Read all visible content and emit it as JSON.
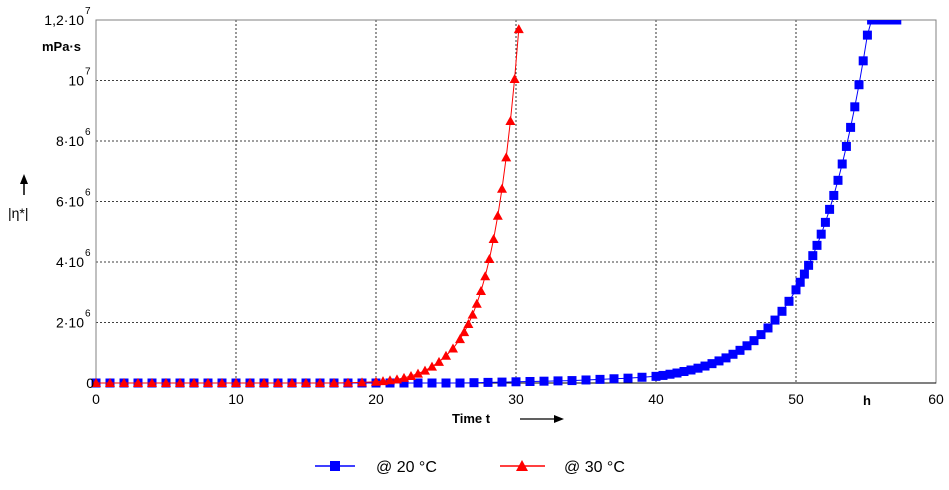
{
  "chart_data": {
    "type": "scatter",
    "xlabel": "Time t",
    "x_unit": "h",
    "ylabel": "|η*|",
    "y_unit": "mPa·s",
    "xlim": [
      0,
      60
    ],
    "ylim": [
      0,
      12000000
    ],
    "grid": true,
    "legend_position": "bottom-center",
    "x_ticks": [
      {
        "value": 0,
        "label": "0"
      },
      {
        "value": 10,
        "label": "10"
      },
      {
        "value": 20,
        "label": "20"
      },
      {
        "value": 30,
        "label": "30"
      },
      {
        "value": 40,
        "label": "40"
      },
      {
        "value": 50,
        "label": "50"
      },
      {
        "value": 60,
        "label": "60"
      }
    ],
    "y_ticks": [
      {
        "value": 0,
        "mantissa": "0",
        "exponent": ""
      },
      {
        "value": 2000000,
        "mantissa": "2·10",
        "exponent": "6"
      },
      {
        "value": 4000000,
        "mantissa": "4·10",
        "exponent": "6"
      },
      {
        "value": 6000000,
        "mantissa": "6·10",
        "exponent": "6"
      },
      {
        "value": 8000000,
        "mantissa": "8·10",
        "exponent": "6"
      },
      {
        "value": 10000000,
        "mantissa": "10",
        "exponent": "7"
      },
      {
        "value": 12000000,
        "mantissa": "1,2·10",
        "exponent": "7"
      }
    ],
    "series": [
      {
        "name": "@ 20 °C",
        "color": "#0000ff",
        "marker": "square",
        "x": [
          0,
          1,
          2,
          3,
          4,
          5,
          6,
          7,
          8,
          9,
          10,
          11,
          12,
          13,
          14,
          15,
          16,
          17,
          18,
          19,
          20,
          21,
          22,
          23,
          24,
          25,
          26,
          27,
          28,
          29,
          30,
          31,
          32,
          33,
          34,
          35,
          36,
          37,
          38,
          39,
          40,
          40.5,
          41,
          41.5,
          42,
          42.5,
          43,
          43.5,
          44,
          44.5,
          45,
          45.5,
          46,
          46.5,
          47,
          47.5,
          48,
          48.5,
          49,
          49.5,
          50,
          50.3,
          50.6,
          50.9,
          51.2,
          51.5,
          51.8,
          52.1,
          52.4,
          52.7,
          53,
          53.3,
          53.6,
          53.9,
          54.2,
          54.5,
          54.8,
          55.1,
          55.4,
          55.7,
          56,
          56.3,
          56.6,
          56.9,
          57.2
        ],
        "y": [
          0,
          0,
          0,
          0,
          0,
          0,
          0,
          0,
          0,
          0,
          0,
          0,
          0,
          0,
          0,
          0,
          0,
          0,
          0,
          0,
          0,
          0,
          0,
          0,
          0,
          0,
          0,
          10000,
          20000,
          30000,
          40000,
          50000,
          60000,
          70000,
          80000,
          100000,
          120000,
          140000,
          160000,
          190000,
          220000,
          250000,
          290000,
          330000,
          380000,
          430000,
          490000,
          560000,
          640000,
          730000,
          830000,
          950000,
          1080000,
          1230000,
          1400000,
          1600000,
          1820000,
          2080000,
          2370000,
          2700000,
          3080000,
          3330000,
          3600000,
          3890000,
          4210000,
          4550000,
          4920000,
          5310000,
          5740000,
          6200000,
          6700000,
          7240000,
          7820000,
          8450000,
          9130000,
          9860000,
          10650000,
          11500000,
          12000000,
          12000000,
          12000000,
          12000000,
          12000000,
          12000000,
          12000000
        ]
      },
      {
        "name": "@ 30 °C",
        "color": "#ff0000",
        "marker": "triangle",
        "x": [
          0,
          1,
          2,
          3,
          4,
          5,
          6,
          7,
          8,
          9,
          10,
          11,
          12,
          13,
          14,
          15,
          16,
          17,
          18,
          19,
          20,
          20.5,
          21,
          21.5,
          22,
          22.5,
          23,
          23.5,
          24,
          24.5,
          25,
          25.5,
          26,
          26.3,
          26.6,
          26.9,
          27.2,
          27.5,
          27.8,
          28.1,
          28.4,
          28.7,
          29,
          29.3,
          29.6,
          29.9,
          30.2
        ],
        "y": [
          0,
          0,
          0,
          0,
          0,
          0,
          0,
          0,
          0,
          0,
          0,
          0,
          0,
          0,
          0,
          0,
          0,
          0,
          10000,
          20000,
          40000,
          60000,
          90000,
          120000,
          170000,
          230000,
          310000,
          410000,
          540000,
          700000,
          900000,
          1140000,
          1450000,
          1680000,
          1950000,
          2260000,
          2620000,
          3040000,
          3530000,
          4100000,
          4760000,
          5530000,
          6420000,
          7460000,
          8660000,
          10050000,
          11700000
        ]
      }
    ]
  }
}
